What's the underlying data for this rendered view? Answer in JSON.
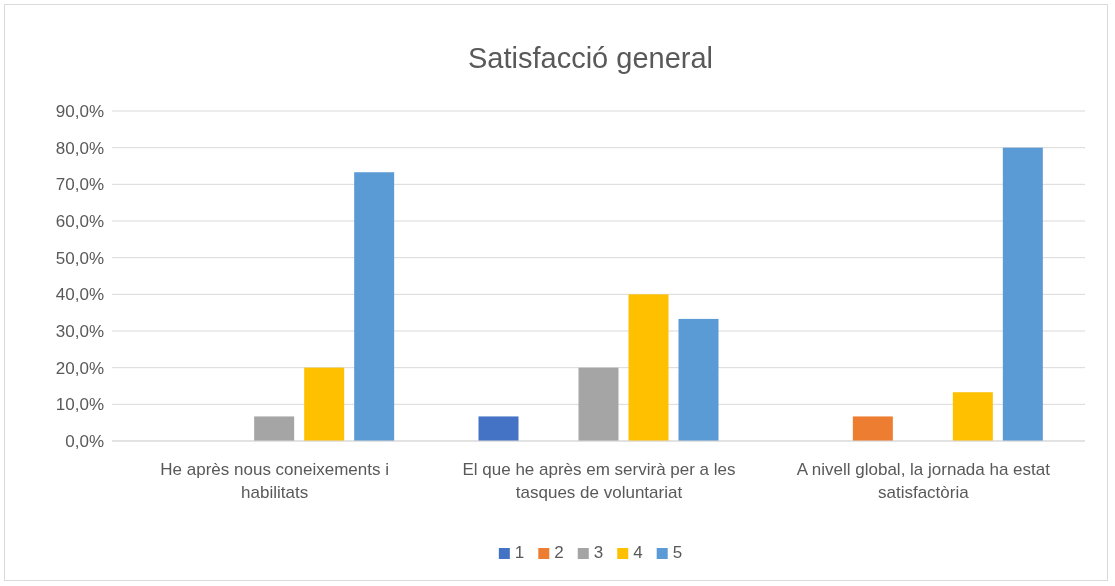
{
  "chart_data": {
    "type": "bar",
    "title": "Satisfacció general",
    "categories": [
      "He après nous coneixements i habilitats",
      "El que he après em servirà per a les tasques de voluntariat",
      "A nivell global, la jornada ha estat satisfactòria"
    ],
    "series": [
      {
        "name": "1",
        "color": "#4472c4",
        "values": [
          0,
          6.7,
          0
        ]
      },
      {
        "name": "2",
        "color": "#ed7d31",
        "values": [
          0,
          0,
          6.7
        ]
      },
      {
        "name": "3",
        "color": "#a5a5a5",
        "values": [
          6.7,
          20,
          0
        ]
      },
      {
        "name": "4",
        "color": "#ffc000",
        "values": [
          20,
          40,
          13.3
        ]
      },
      {
        "name": "5",
        "color": "#5b9bd5",
        "values": [
          73.3,
          33.3,
          80
        ]
      }
    ],
    "ylim": [
      0,
      90
    ],
    "yticks": [
      {
        "value": 0,
        "label": "0,0%"
      },
      {
        "value": 10,
        "label": "10,0%"
      },
      {
        "value": 20,
        "label": "20,0%"
      },
      {
        "value": 30,
        "label": "30,0%"
      },
      {
        "value": 40,
        "label": "40,0%"
      },
      {
        "value": 50,
        "label": "50,0%"
      },
      {
        "value": 60,
        "label": "60,0%"
      },
      {
        "value": 70,
        "label": "70,0%"
      },
      {
        "value": 80,
        "label": "80,0%"
      },
      {
        "value": 90,
        "label": "90,0%"
      }
    ],
    "grid": "y",
    "legend": "bottom"
  }
}
